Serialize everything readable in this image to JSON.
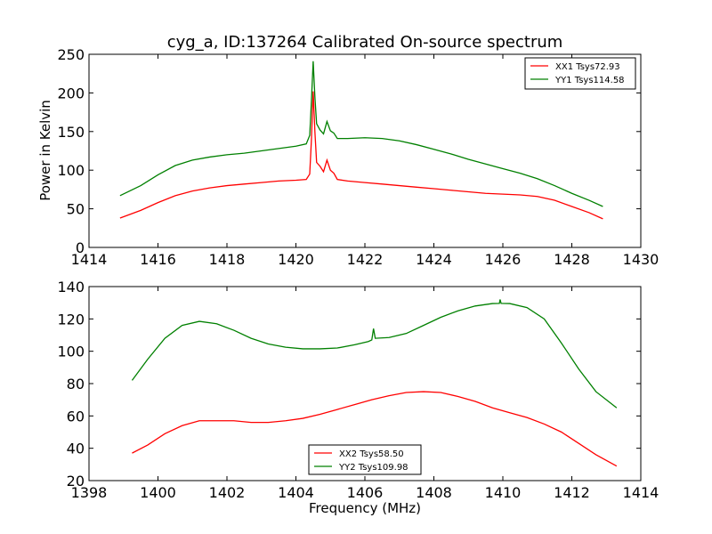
{
  "chart_data": [
    {
      "type": "line",
      "title": "cyg_a, ID:137264 Calibrated On-source spectrum",
      "xlabel": "",
      "ylabel": "Power in Kelvin",
      "xlim": [
        1414,
        1430
      ],
      "ylim": [
        0,
        250
      ],
      "xticks": [
        1414,
        1416,
        1418,
        1420,
        1422,
        1424,
        1426,
        1428,
        1430
      ],
      "yticks": [
        0,
        50,
        100,
        150,
        200,
        250
      ],
      "legend_position": "top-right",
      "series": [
        {
          "name": "XX1 Tsys72.93",
          "color": "#ff0000",
          "points": [
            [
              1414.9,
              38
            ],
            [
              1415.5,
              48
            ],
            [
              1416.0,
              58
            ],
            [
              1416.5,
              67
            ],
            [
              1417.0,
              73
            ],
            [
              1417.5,
              77
            ],
            [
              1418.0,
              80
            ],
            [
              1418.5,
              82
            ],
            [
              1419.0,
              84
            ],
            [
              1419.5,
              86
            ],
            [
              1420.0,
              87
            ],
            [
              1420.3,
              88
            ],
            [
              1420.4,
              95
            ],
            [
              1420.45,
              140
            ],
            [
              1420.5,
              202
            ],
            [
              1420.55,
              150
            ],
            [
              1420.6,
              110
            ],
            [
              1420.7,
              105
            ],
            [
              1420.8,
              98
            ],
            [
              1420.9,
              113
            ],
            [
              1421.0,
              100
            ],
            [
              1421.1,
              96
            ],
            [
              1421.2,
              88
            ],
            [
              1421.5,
              86
            ],
            [
              1422.0,
              84
            ],
            [
              1422.5,
              82
            ],
            [
              1423.0,
              80
            ],
            [
              1423.5,
              78
            ],
            [
              1424.0,
              76
            ],
            [
              1424.5,
              74
            ],
            [
              1425.0,
              72
            ],
            [
              1425.5,
              70
            ],
            [
              1426.0,
              69
            ],
            [
              1426.5,
              68
            ],
            [
              1427.0,
              66
            ],
            [
              1427.5,
              61
            ],
            [
              1428.0,
              53
            ],
            [
              1428.5,
              45
            ],
            [
              1428.9,
              37
            ]
          ]
        },
        {
          "name": "YY1 Tsys114.58",
          "color": "#008000",
          "points": [
            [
              1414.9,
              67
            ],
            [
              1415.5,
              80
            ],
            [
              1416.0,
              94
            ],
            [
              1416.5,
              106
            ],
            [
              1417.0,
              113
            ],
            [
              1417.5,
              117
            ],
            [
              1418.0,
              120
            ],
            [
              1418.5,
              122
            ],
            [
              1419.0,
              125
            ],
            [
              1419.5,
              128
            ],
            [
              1420.0,
              131
            ],
            [
              1420.3,
              134
            ],
            [
              1420.4,
              145
            ],
            [
              1420.45,
              190
            ],
            [
              1420.5,
              241
            ],
            [
              1420.55,
              195
            ],
            [
              1420.6,
              160
            ],
            [
              1420.7,
              152
            ],
            [
              1420.8,
              147
            ],
            [
              1420.9,
              163
            ],
            [
              1421.0,
              151
            ],
            [
              1421.1,
              148
            ],
            [
              1421.2,
              141
            ],
            [
              1421.5,
              141
            ],
            [
              1422.0,
              142
            ],
            [
              1422.5,
              141
            ],
            [
              1423.0,
              138
            ],
            [
              1423.5,
              133
            ],
            [
              1424.0,
              127
            ],
            [
              1424.5,
              121
            ],
            [
              1425.0,
              114
            ],
            [
              1425.5,
              108
            ],
            [
              1426.0,
              102
            ],
            [
              1426.5,
              96
            ],
            [
              1427.0,
              89
            ],
            [
              1427.5,
              80
            ],
            [
              1428.0,
              70
            ],
            [
              1428.5,
              61
            ],
            [
              1428.9,
              53
            ]
          ]
        }
      ]
    },
    {
      "type": "line",
      "title": "",
      "xlabel": "Frequency (MHz)",
      "ylabel": "",
      "xlim": [
        1398,
        1414
      ],
      "ylim": [
        20,
        140
      ],
      "xticks": [
        1398,
        1400,
        1402,
        1404,
        1406,
        1408,
        1410,
        1412,
        1414
      ],
      "yticks": [
        20,
        40,
        60,
        80,
        100,
        120,
        140
      ],
      "legend_position": "bottom-center",
      "series": [
        {
          "name": "XX2 Tsys58.50",
          "color": "#ff0000",
          "points": [
            [
              1399.25,
              37
            ],
            [
              1399.7,
              42
            ],
            [
              1400.2,
              49
            ],
            [
              1400.7,
              54
            ],
            [
              1401.2,
              57
            ],
            [
              1401.7,
              57
            ],
            [
              1402.2,
              57
            ],
            [
              1402.7,
              56
            ],
            [
              1403.2,
              56
            ],
            [
              1403.7,
              57
            ],
            [
              1404.2,
              58.5
            ],
            [
              1404.7,
              61
            ],
            [
              1405.2,
              64
            ],
            [
              1405.7,
              67
            ],
            [
              1406.2,
              70
            ],
            [
              1406.7,
              72.5
            ],
            [
              1407.2,
              74.5
            ],
            [
              1407.7,
              75
            ],
            [
              1408.2,
              74.5
            ],
            [
              1408.7,
              72
            ],
            [
              1409.2,
              69
            ],
            [
              1409.7,
              65
            ],
            [
              1410.2,
              62
            ],
            [
              1410.7,
              59
            ],
            [
              1411.2,
              55
            ],
            [
              1411.7,
              50
            ],
            [
              1412.2,
              43
            ],
            [
              1412.7,
              36
            ],
            [
              1413.3,
              29
            ]
          ]
        },
        {
          "name": "YY2 Tsys109.98",
          "color": "#008000",
          "points": [
            [
              1399.25,
              82
            ],
            [
              1399.7,
              95
            ],
            [
              1400.2,
              108
            ],
            [
              1400.7,
              116
            ],
            [
              1401.2,
              118.5
            ],
            [
              1401.7,
              117
            ],
            [
              1402.2,
              113
            ],
            [
              1402.7,
              108
            ],
            [
              1403.2,
              104.5
            ],
            [
              1403.7,
              102.5
            ],
            [
              1404.2,
              101.5
            ],
            [
              1404.7,
              101.5
            ],
            [
              1405.2,
              102
            ],
            [
              1405.7,
              104
            ],
            [
              1406.1,
              106
            ],
            [
              1406.2,
              107
            ],
            [
              1406.25,
              114
            ],
            [
              1406.3,
              108
            ],
            [
              1406.7,
              108.5
            ],
            [
              1407.2,
              111
            ],
            [
              1407.7,
              116
            ],
            [
              1408.2,
              121
            ],
            [
              1408.7,
              125
            ],
            [
              1409.2,
              128
            ],
            [
              1409.7,
              129.5
            ],
            [
              1409.9,
              129.6
            ],
            [
              1409.92,
              132
            ],
            [
              1409.95,
              129.6
            ],
            [
              1410.2,
              129.5
            ],
            [
              1410.7,
              127
            ],
            [
              1411.2,
              120
            ],
            [
              1411.7,
              105
            ],
            [
              1412.2,
              89
            ],
            [
              1412.7,
              75
            ],
            [
              1413.3,
              65
            ]
          ]
        }
      ]
    }
  ]
}
